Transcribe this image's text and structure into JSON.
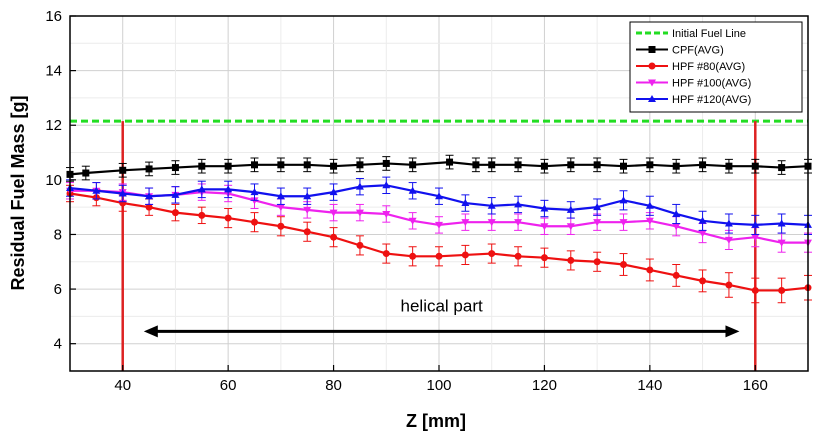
{
  "chart_data": {
    "type": "line",
    "xlabel": "Z [mm]",
    "ylabel": "Residual Fuel Mass [g]",
    "xlim": [
      30,
      170
    ],
    "ylim": [
      3,
      16
    ],
    "xticks": [
      40,
      60,
      80,
      100,
      120,
      140,
      160
    ],
    "yticks": [
      4,
      6,
      8,
      10,
      12,
      14,
      16
    ],
    "grid": true,
    "legend_position": "top-right",
    "reference_lines": {
      "horizontal": {
        "name": "Initial Fuel Line",
        "y": 12.15,
        "color": "#22dd22"
      },
      "vertical": [
        {
          "x": 40,
          "color": "#dd2222"
        },
        {
          "x": 160,
          "color": "#dd2222"
        }
      ]
    },
    "annotation": {
      "text": "helical part",
      "x_start": 44,
      "x_end": 157,
      "y": 4.45
    },
    "series": [
      {
        "name": "CPF(AVG)",
        "color": "#000000",
        "marker": "square",
        "x": [
          30,
          33,
          40,
          45,
          50,
          55,
          60,
          65,
          70,
          75,
          80,
          85,
          90,
          95,
          102,
          107,
          110,
          115,
          120,
          125,
          130,
          135,
          140,
          145,
          150,
          155,
          160,
          165,
          170
        ],
        "y": [
          10.2,
          10.25,
          10.35,
          10.4,
          10.45,
          10.5,
          10.5,
          10.55,
          10.55,
          10.55,
          10.5,
          10.55,
          10.6,
          10.55,
          10.65,
          10.55,
          10.55,
          10.55,
          10.5,
          10.55,
          10.55,
          10.5,
          10.55,
          10.5,
          10.55,
          10.5,
          10.5,
          10.45,
          10.5
        ],
        "err": [
          0.25,
          0.25,
          0.25,
          0.25,
          0.25,
          0.25,
          0.25,
          0.25,
          0.25,
          0.25,
          0.25,
          0.25,
          0.25,
          0.25,
          0.25,
          0.25,
          0.25,
          0.25,
          0.25,
          0.25,
          0.25,
          0.25,
          0.25,
          0.25,
          0.25,
          0.25,
          0.25,
          0.25,
          0.25
        ]
      },
      {
        "name": "HPF #80(AVG)",
        "color": "#ee1111",
        "marker": "circle",
        "x": [
          30,
          35,
          40,
          45,
          50,
          55,
          60,
          65,
          70,
          75,
          80,
          85,
          90,
          95,
          100,
          105,
          110,
          115,
          120,
          125,
          130,
          135,
          140,
          145,
          150,
          155,
          160,
          165,
          170
        ],
        "y": [
          9.5,
          9.35,
          9.15,
          9.0,
          8.8,
          8.7,
          8.6,
          8.45,
          8.3,
          8.1,
          7.9,
          7.6,
          7.3,
          7.2,
          7.2,
          7.25,
          7.3,
          7.2,
          7.15,
          7.05,
          7.0,
          6.9,
          6.7,
          6.5,
          6.3,
          6.15,
          5.95,
          5.95,
          6.05
        ],
        "err": [
          0.3,
          0.3,
          0.3,
          0.3,
          0.3,
          0.3,
          0.35,
          0.35,
          0.35,
          0.35,
          0.35,
          0.35,
          0.35,
          0.35,
          0.35,
          0.35,
          0.35,
          0.35,
          0.35,
          0.35,
          0.35,
          0.4,
          0.4,
          0.4,
          0.4,
          0.45,
          0.45,
          0.45,
          0.45
        ]
      },
      {
        "name": "HPF #100(AVG)",
        "color": "#ee22ee",
        "marker": "triangle-down",
        "x": [
          30,
          35,
          40,
          45,
          50,
          55,
          60,
          65,
          70,
          75,
          80,
          85,
          90,
          95,
          100,
          105,
          110,
          115,
          120,
          125,
          130,
          135,
          140,
          145,
          150,
          155,
          160,
          165,
          170
        ],
        "y": [
          9.6,
          9.6,
          9.55,
          9.4,
          9.45,
          9.55,
          9.5,
          9.25,
          9.0,
          8.9,
          8.8,
          8.8,
          8.75,
          8.5,
          8.35,
          8.45,
          8.45,
          8.45,
          8.3,
          8.3,
          8.45,
          8.45,
          8.5,
          8.3,
          8.05,
          7.8,
          7.9,
          7.7,
          7.7
        ],
        "err": [
          0.3,
          0.3,
          0.3,
          0.3,
          0.3,
          0.3,
          0.3,
          0.3,
          0.3,
          0.3,
          0.3,
          0.3,
          0.3,
          0.3,
          0.3,
          0.3,
          0.3,
          0.3,
          0.3,
          0.3,
          0.3,
          0.3,
          0.3,
          0.35,
          0.35,
          0.35,
          0.35,
          0.35,
          0.35
        ]
      },
      {
        "name": "HPF #120(AVG)",
        "color": "#1111ee",
        "marker": "triangle-up",
        "x": [
          30,
          35,
          40,
          45,
          50,
          55,
          60,
          65,
          70,
          75,
          80,
          85,
          90,
          95,
          100,
          105,
          110,
          115,
          120,
          125,
          130,
          135,
          140,
          145,
          150,
          155,
          160,
          165,
          170
        ],
        "y": [
          9.7,
          9.6,
          9.5,
          9.4,
          9.45,
          9.65,
          9.65,
          9.55,
          9.4,
          9.4,
          9.55,
          9.75,
          9.8,
          9.6,
          9.4,
          9.15,
          9.05,
          9.1,
          8.95,
          8.9,
          9.0,
          9.25,
          9.05,
          8.75,
          8.5,
          8.4,
          8.35,
          8.4,
          8.35
        ],
        "err": [
          0.3,
          0.3,
          0.3,
          0.3,
          0.3,
          0.3,
          0.3,
          0.3,
          0.3,
          0.3,
          0.3,
          0.3,
          0.3,
          0.3,
          0.3,
          0.3,
          0.3,
          0.3,
          0.3,
          0.3,
          0.3,
          0.35,
          0.35,
          0.35,
          0.35,
          0.35,
          0.35,
          0.35,
          0.35
        ]
      }
    ]
  }
}
